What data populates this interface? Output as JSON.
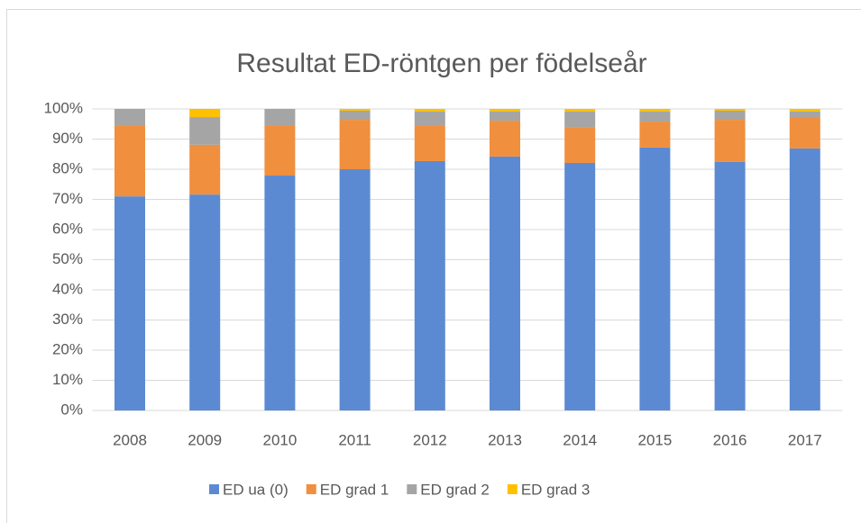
{
  "chart_data": {
    "type": "stacked_bar",
    "title": "Resultat ED-röntgen per födelseår",
    "categories": [
      "2008",
      "2009",
      "2010",
      "2011",
      "2012",
      "2013",
      "2014",
      "2015",
      "2016",
      "2017"
    ],
    "series": [
      {
        "name": "ED ua (0)",
        "color": "#5b8ad3",
        "values": [
          71.0,
          71.6,
          77.9,
          80.0,
          82.7,
          84.2,
          82.1,
          87.2,
          82.4,
          86.9
        ]
      },
      {
        "name": "ED grad 1",
        "color": "#f08f3e",
        "values": [
          23.6,
          16.5,
          16.7,
          16.4,
          11.9,
          11.9,
          11.9,
          8.6,
          14.0,
          10.4
        ]
      },
      {
        "name": "ED grad 2",
        "color": "#a5a5a5",
        "values": [
          5.4,
          9.2,
          5.4,
          3.0,
          4.5,
          3.0,
          5.1,
          3.3,
          3.0,
          1.8
        ]
      },
      {
        "name": "ED grad 3",
        "color": "#ffc000",
        "values": [
          0,
          2.7,
          0,
          0.6,
          0.9,
          0.9,
          0.9,
          0.9,
          0.6,
          0.9
        ]
      }
    ],
    "ylim": [
      0,
      100
    ],
    "yticks": [
      {
        "value": 0,
        "label": "0%"
      },
      {
        "value": 10,
        "label": "10%"
      },
      {
        "value": 20,
        "label": "20%"
      },
      {
        "value": 30,
        "label": "30%"
      },
      {
        "value": 40,
        "label": "40%"
      },
      {
        "value": 50,
        "label": "50%"
      },
      {
        "value": 60,
        "label": "60%"
      },
      {
        "value": 70,
        "label": "70%"
      },
      {
        "value": 80,
        "label": "80%"
      },
      {
        "value": 90,
        "label": "90%"
      },
      {
        "value": 100,
        "label": "100%"
      }
    ],
    "grid": true,
    "legend": "bottom"
  }
}
